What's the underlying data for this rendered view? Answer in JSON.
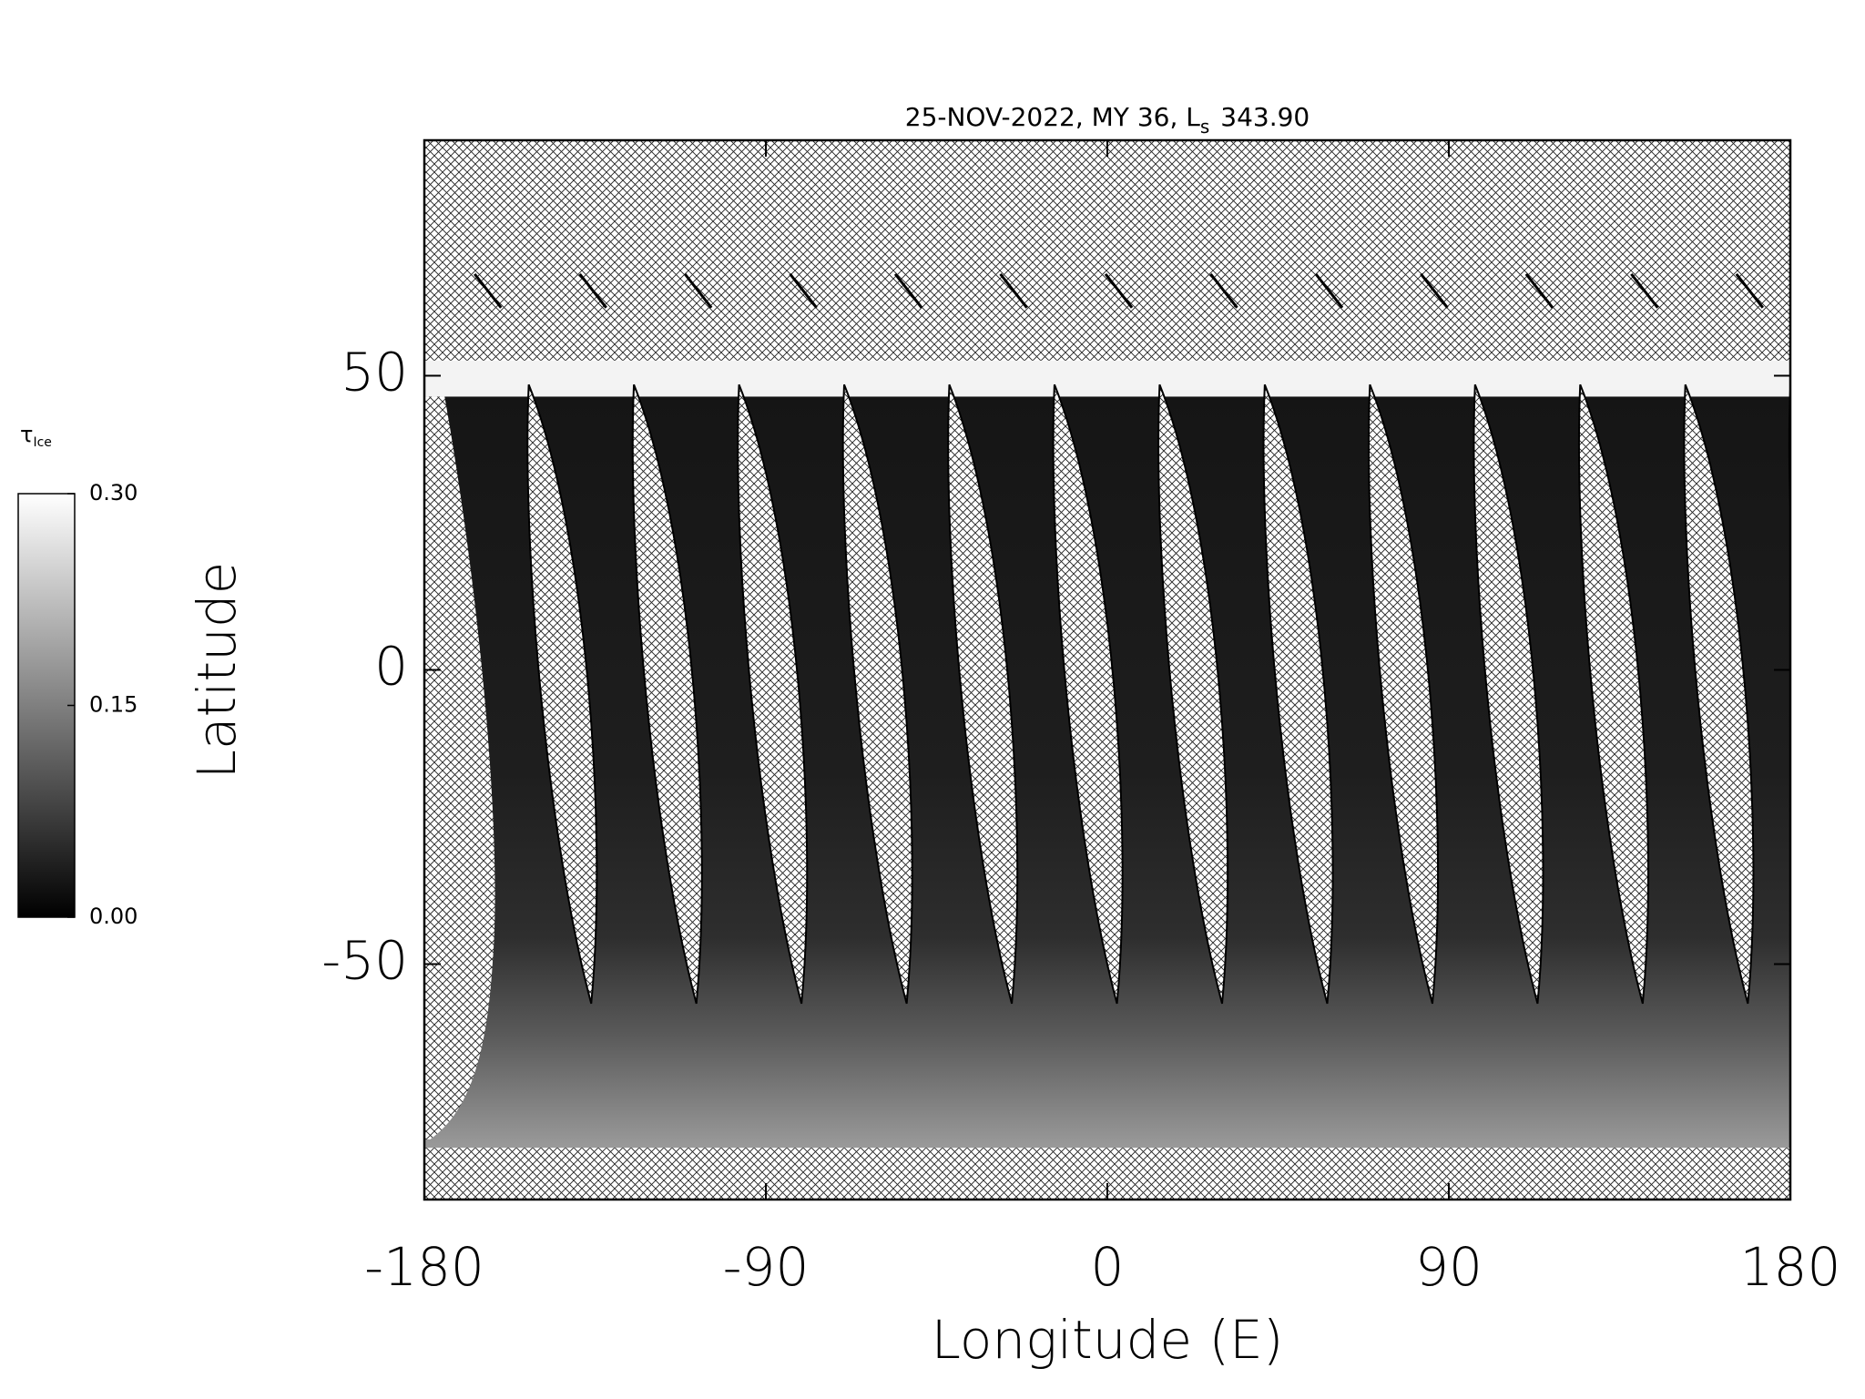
{
  "chart_data": {
    "type": "map",
    "title": {
      "main": "25-NOV-2022, MY 36,  L",
      "subscript": "s",
      "rest": "343.90"
    },
    "xlabel": "Longitude (E)",
    "ylabel": "Latitude",
    "xlim": [
      -180,
      180
    ],
    "xticks": [
      -180,
      -90,
      0,
      90,
      180
    ],
    "ylim": [
      -90,
      90
    ],
    "yticks": [
      -50,
      0,
      50
    ],
    "colorbar": {
      "label": "τ",
      "label_subscript": "Ice",
      "lim": [
        0,
        0.3
      ],
      "ticks": [
        {
          "value": 0,
          "label": "0.00"
        },
        {
          "value": 0.15,
          "label": "0.15"
        },
        {
          "value": 0.3,
          "label": "0.30"
        }
      ]
    }
  }
}
